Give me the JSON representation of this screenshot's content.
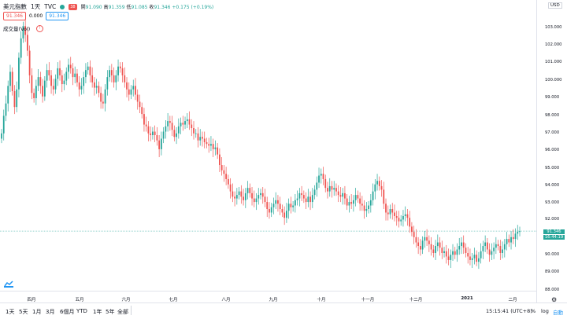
{
  "legend": {
    "symbol": "美元指數",
    "interval": "1天",
    "exchange": "TVC",
    "badge": "38",
    "open_label": "開",
    "open": "91.090",
    "high_label": "高",
    "high": "91.359",
    "low_label": "低",
    "low": "91.085",
    "close_label": "收",
    "close": "91.346",
    "change": "+0.175 (+0.19%)"
  },
  "row2": {
    "bid": "91.346",
    "spread": "0.000",
    "ask": "91.346"
  },
  "volume": {
    "label": "成交量(Vol)"
  },
  "price_axis": {
    "currency": "USD",
    "ticks": [
      "103.000",
      "102.000",
      "101.000",
      "100.000",
      "99.000",
      "98.000",
      "97.000",
      "96.000",
      "95.000",
      "94.000",
      "93.000",
      "92.000",
      "90.000",
      "89.000",
      "88.000"
    ],
    "current_price": "91.346",
    "countdown": "16:44:19"
  },
  "date_axis": {
    "ticks": [
      "四月",
      "五月",
      "六月",
      "七月",
      "八月",
      "九月",
      "十月",
      "十一月",
      "十二月",
      "2021",
      "二月"
    ]
  },
  "bottom_bar": {
    "ranges": [
      "1天",
      "5天",
      "1月",
      "3月",
      "6個月",
      "YTD",
      "1年",
      "5年",
      "全部"
    ],
    "clock": "15:15:41 (UTC+8)",
    "percent": "%",
    "log": "log",
    "auto": "自動"
  },
  "colors": {
    "up": "#26a69a",
    "down": "#ef5350",
    "accent": "#2196f3"
  },
  "chart_data": {
    "type": "candlestick",
    "symbol": "美元指數",
    "ylim": [
      88,
      103.5
    ],
    "closes": [
      96.9,
      97.9,
      98.6,
      99.6,
      100.4,
      99.3,
      98.4,
      99.4,
      101.2,
      102.3,
      103.0,
      102.5,
      101.6,
      100.2,
      99.2,
      98.9,
      99.6,
      100.1,
      99.6,
      99.0,
      99.9,
      100.5,
      100.2,
      99.6,
      99.4,
      100.0,
      100.6,
      100.2,
      99.7,
      99.9,
      100.4,
      100.8,
      100.6,
      100.1,
      100.3,
      99.8,
      99.4,
      99.6,
      100.1,
      100.5,
      100.7,
      100.2,
      99.8,
      99.5,
      99.6,
      99.2,
      98.7,
      98.6,
      99.4,
      100.1,
      100.5,
      100.2,
      99.8,
      100.2,
      100.7,
      100.6,
      100.2,
      99.8,
      99.4,
      99.1,
      99.4,
      99.6,
      99.1,
      98.7,
      98.4,
      98.0,
      97.4,
      97.3,
      96.9,
      96.8,
      97.0,
      96.8,
      96.5,
      96.0,
      96.6,
      97.0,
      97.3,
      97.6,
      97.5,
      97.1,
      96.7,
      96.9,
      97.3,
      97.5,
      97.4,
      97.6,
      97.7,
      97.4,
      97.2,
      96.9,
      96.9,
      96.5,
      96.7,
      96.6,
      96.4,
      96.3,
      96.2,
      96.3,
      96.0,
      96.1,
      95.7,
      95.1,
      94.8,
      94.6,
      94.3,
      94.0,
      93.6,
      93.3,
      93.2,
      93.4,
      93.6,
      93.3,
      93.1,
      93.5,
      93.8,
      93.5,
      93.2,
      93.0,
      93.2,
      93.4,
      93.5,
      93.3,
      93.0,
      92.6,
      92.4,
      92.7,
      92.9,
      93.1,
      92.9,
      92.6,
      92.4,
      92.1,
      92.5,
      92.9,
      92.7,
      92.8,
      93.1,
      93.2,
      93.5,
      93.4,
      93.2,
      93.0,
      93.3,
      93.0,
      93.4,
      93.7,
      94.1,
      94.5,
      94.6,
      94.3,
      93.8,
      93.6,
      93.9,
      93.7,
      93.8,
      93.6,
      93.4,
      93.3,
      93.5,
      93.2,
      92.8,
      93.0,
      92.9,
      93.1,
      93.4,
      93.2,
      92.9,
      92.8,
      92.5,
      92.6,
      92.8,
      93.1,
      93.6,
      94.0,
      94.2,
      93.9,
      93.7,
      92.9,
      92.4,
      92.3,
      92.6,
      92.4,
      92.2,
      92.1,
      91.9,
      92.0,
      92.2,
      92.3,
      92.1,
      91.6,
      91.3,
      91.0,
      90.7,
      90.5,
      90.3,
      90.8,
      91.0,
      90.8,
      90.6,
      90.3,
      90.1,
      90.5,
      90.7,
      90.4,
      90.1,
      90.2,
      89.9,
      89.7,
      90.0,
      90.2,
      90.0,
      90.3,
      90.5,
      90.7,
      90.4,
      90.1,
      89.9,
      89.7,
      89.8,
      90.0,
      89.6,
      89.8,
      90.2,
      90.5,
      90.7,
      90.3,
      90.0,
      90.2,
      90.4,
      90.6,
      90.5,
      90.1,
      90.3,
      90.6,
      90.9,
      90.7,
      91.0,
      90.9,
      91.2,
      91.3,
      91.346
    ]
  }
}
